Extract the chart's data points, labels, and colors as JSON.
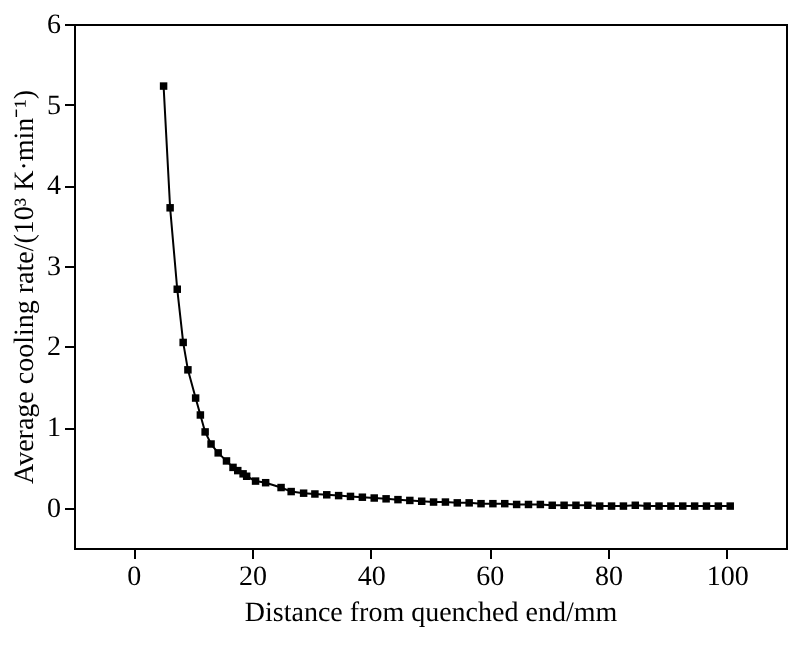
{
  "chart_data": {
    "type": "line",
    "xlabel": "Distance from quenched end/mm",
    "ylabel": "Average cooling rate/(10³ K·min⁻¹)",
    "x": [
      5.1,
      6.2,
      7.4,
      8.4,
      9.2,
      10.5,
      11.3,
      12.1,
      13.1,
      14.3,
      15.7,
      16.8,
      17.6,
      18.5,
      19.1,
      20.6,
      22.3,
      24.9,
      26.6,
      28.7,
      30.6,
      32.6,
      34.6,
      36.6,
      38.6,
      40.6,
      42.6,
      44.6,
      46.6,
      48.6,
      50.6,
      52.6,
      54.6,
      56.6,
      58.6,
      60.6,
      62.6,
      64.6,
      66.6,
      68.6,
      70.6,
      72.6,
      74.6,
      76.6,
      78.6,
      80.6,
      82.6,
      84.6,
      86.6,
      88.6,
      90.6,
      92.6,
      94.6,
      96.6,
      98.6,
      100.6
    ],
    "series": [
      {
        "color": "#000000",
        "values": [
          5.23,
          3.72,
          2.71,
          2.05,
          1.71,
          1.36,
          1.15,
          0.94,
          0.79,
          0.68,
          0.58,
          0.5,
          0.46,
          0.42,
          0.39,
          0.33,
          0.31,
          0.25,
          0.2,
          0.18,
          0.17,
          0.16,
          0.15,
          0.14,
          0.13,
          0.12,
          0.11,
          0.1,
          0.09,
          0.08,
          0.07,
          0.07,
          0.06,
          0.06,
          0.05,
          0.05,
          0.05,
          0.04,
          0.04,
          0.04,
          0.03,
          0.03,
          0.03,
          0.03,
          0.02,
          0.02,
          0.02,
          0.03,
          0.02,
          0.02,
          0.02,
          0.02,
          0.02,
          0.02,
          0.02,
          0.02
        ]
      }
    ],
    "xlim": [
      -10,
      110
    ],
    "ylim": [
      -0.5,
      6
    ],
    "xticks": [
      0,
      20,
      40,
      60,
      80,
      100
    ],
    "yticks": [
      0,
      1,
      2,
      3,
      4,
      5,
      6
    ],
    "grid": false,
    "marker": "square",
    "line_style": "solid"
  }
}
